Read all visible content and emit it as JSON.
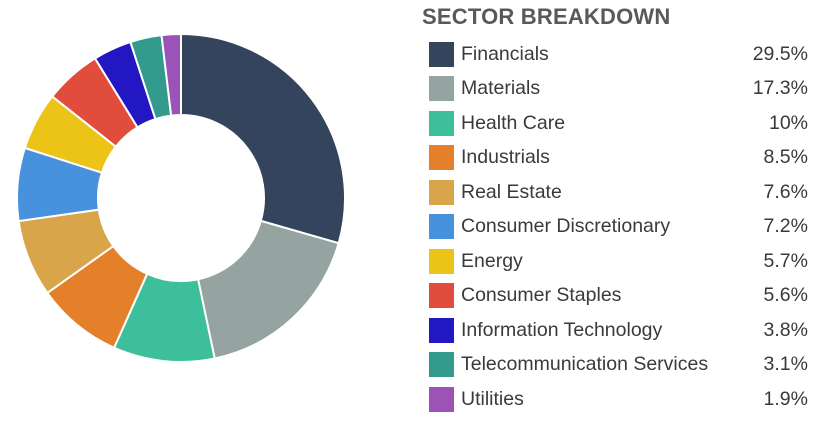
{
  "chart_data": {
    "type": "pie",
    "style": "donut",
    "title": "SECTOR BREAKDOWN",
    "legend_position": "right",
    "categories": [
      "Financials",
      "Materials",
      "Health Care",
      "Industrials",
      "Real Estate",
      "Consumer Discretionary",
      "Energy",
      "Consumer Staples",
      "Information Technology",
      "Telecommunication Services",
      "Utilities"
    ],
    "values": [
      29.5,
      17.3,
      10,
      8.5,
      7.6,
      7.2,
      5.7,
      5.6,
      3.8,
      3.1,
      1.9
    ],
    "value_labels": [
      "29.5%",
      "17.3%",
      "10%",
      "8.5%",
      "7.6%",
      "7.2%",
      "5.7%",
      "5.6%",
      "3.8%",
      "3.1%",
      "1.9%"
    ],
    "colors": [
      "#34445c",
      "#96a4a1",
      "#3cbf9a",
      "#e47f2a",
      "#d9a54a",
      "#4892dd",
      "#ecc418",
      "#e24c3c",
      "#2316c3",
      "#339a8e",
      "#9b53b8"
    ]
  }
}
